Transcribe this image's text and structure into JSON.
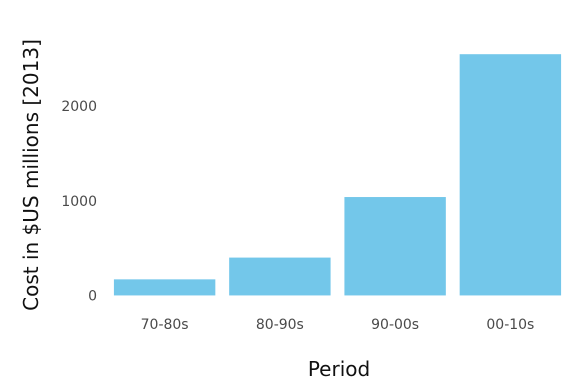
{
  "chart_data": {
    "type": "bar",
    "title": "",
    "xlabel": "Period",
    "ylabel": "Cost in $US millions [2013]",
    "categories": [
      "70-80s",
      "80-90s",
      "90-00s",
      "00-10s"
    ],
    "values": [
      170,
      400,
      1040,
      2550
    ],
    "ylim": [
      -80,
      2700
    ],
    "yticks": [
      0,
      1000,
      2000
    ],
    "grid": false,
    "legend": "none",
    "bar_color": "#73c7ea"
  }
}
